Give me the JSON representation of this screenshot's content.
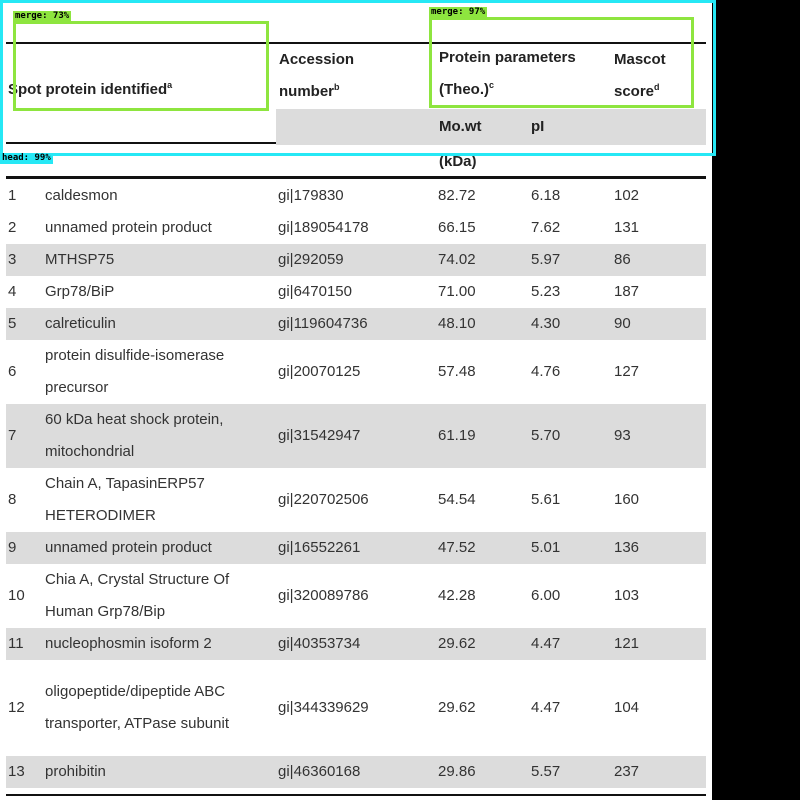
{
  "table": {
    "headers": {
      "spot_protein": "Spot protein identified",
      "spot_protein_sup": "a",
      "accession": "Accession",
      "accession_line2": "number",
      "accession_sup": "b",
      "protein_params": "Protein parameters",
      "protein_params_line2": "(Theo.)",
      "protein_params_sup": "c",
      "mascot": "Mascot",
      "mascot_line2": "score",
      "mascot_sup": "d",
      "mw": "Mo.wt",
      "mw_unit": "(kDa)",
      "pi": "pI"
    },
    "rows": [
      {
        "no": "1",
        "name": "caldesmon",
        "acc": "gi|179830",
        "mw": "82.72",
        "pi": "6.18",
        "score": "102"
      },
      {
        "no": "2",
        "name": "unnamed protein product",
        "acc": "gi|189054178",
        "mw": "66.15",
        "pi": "7.62",
        "score": "131"
      },
      {
        "no": "3",
        "name": "MTHSP75",
        "acc": "gi|292059",
        "mw": "74.02",
        "pi": "5.97",
        "score": "86"
      },
      {
        "no": "4",
        "name": "Grp78/BiP",
        "acc": "gi|6470150",
        "mw": "71.00",
        "pi": "5.23",
        "score": "187"
      },
      {
        "no": "5",
        "name": "calreticulin",
        "acc": "gi|119604736",
        "mw": "48.10",
        "pi": "4.30",
        "score": "90"
      },
      {
        "no": "6",
        "name": "protein disulfide-isomerase precursor",
        "acc": "gi|20070125",
        "mw": "57.48",
        "pi": "4.76",
        "score": "127"
      },
      {
        "no": "7",
        "name": "60 kDa heat shock protein, mitochondrial",
        "acc": "gi|31542947",
        "mw": "61.19",
        "pi": "5.70",
        "score": "93"
      },
      {
        "no": "8",
        "name": "Chain A, TapasinERP57 HETERODIMER",
        "acc": "gi|220702506",
        "mw": "54.54",
        "pi": "5.61",
        "score": "160"
      },
      {
        "no": "9",
        "name": "unnamed protein product",
        "acc": "gi|16552261",
        "mw": "47.52",
        "pi": "5.01",
        "score": "136"
      },
      {
        "no": "10",
        "name": "Chia A, Crystal Structure Of Human Grp78/Bip",
        "acc": "gi|320089786",
        "mw": "42.28",
        "pi": "6.00",
        "score": "103"
      },
      {
        "no": "11",
        "name": "nucleophosmin isoform 2",
        "acc": "gi|40353734",
        "mw": "29.62",
        "pi": "4.47",
        "score": "121"
      },
      {
        "no": "12",
        "name": "oligopeptide/dipeptide ABC transporter, ATPase subunit",
        "acc": "gi|344339629",
        "mw": "29.62",
        "pi": "4.47",
        "score": "104"
      },
      {
        "no": "13",
        "name": "prohibitin",
        "acc": "gi|46360168",
        "mw": "29.86",
        "pi": "5.57",
        "score": "237"
      }
    ]
  },
  "annotations": {
    "merge_left": "merge: 73%",
    "merge_right": "merge: 97%",
    "head": "head: 99%"
  },
  "colors": {
    "merge_box": "#8ee53f",
    "head_box": "#26e8f5",
    "row_shade": "#dcdcdc"
  }
}
